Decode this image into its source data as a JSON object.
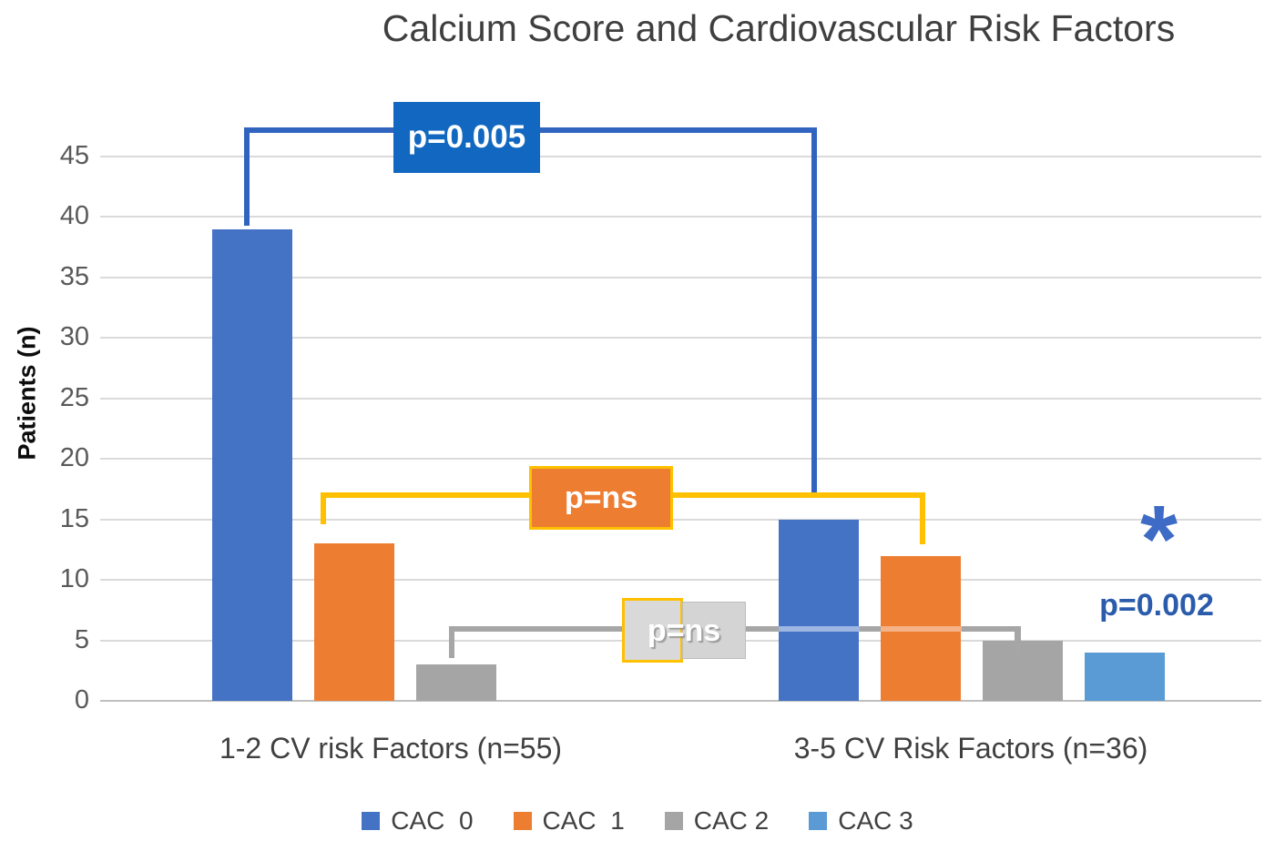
{
  "chart_data": {
    "type": "bar",
    "title": "Calcium Score and Cardiovascular Risk Factors",
    "ylabel": "Patients (n)",
    "xlabel": "",
    "ylim": [
      0,
      45
    ],
    "yticks": [
      0,
      5,
      10,
      15,
      20,
      25,
      30,
      35,
      40,
      45
    ],
    "grid": true,
    "legend_position": "bottom",
    "categories": [
      "1-2 CV risk Factors (n=55)",
      "3-5 CV Risk Factors (n=36)"
    ],
    "series": [
      {
        "name": "CAC  0",
        "color": "#4472C4",
        "values": [
          39,
          15
        ]
      },
      {
        "name": "CAC  1",
        "color": "#ED7D31",
        "values": [
          13,
          12
        ]
      },
      {
        "name": "CAC 2",
        "color": "#A5A5A5",
        "values": [
          3,
          5
        ]
      },
      {
        "name": "CAC 3",
        "color": "#5B9BD5",
        "values": [
          0,
          4
        ]
      }
    ],
    "annotations": [
      {
        "id": "p005",
        "text": "p=0.005"
      },
      {
        "id": "pns-top",
        "text": "p=ns"
      },
      {
        "id": "pns-bottom",
        "text": "p=ns"
      },
      {
        "id": "p002",
        "text": "p=0.002"
      },
      {
        "id": "sig-star",
        "text": "*"
      }
    ]
  },
  "colors": {
    "bracket_blue": "#3064BF",
    "p005_box_bg": "#1268C0",
    "bracket_yellow": "#FFC000",
    "pns_top_box_bg": "#ED7D31",
    "bracket_gray": "#A6A6A6",
    "pns_bottom_box_bg": "#D9D9D9",
    "p002_text": "#2B5CAC",
    "star_blue": "#3D6BC5"
  }
}
